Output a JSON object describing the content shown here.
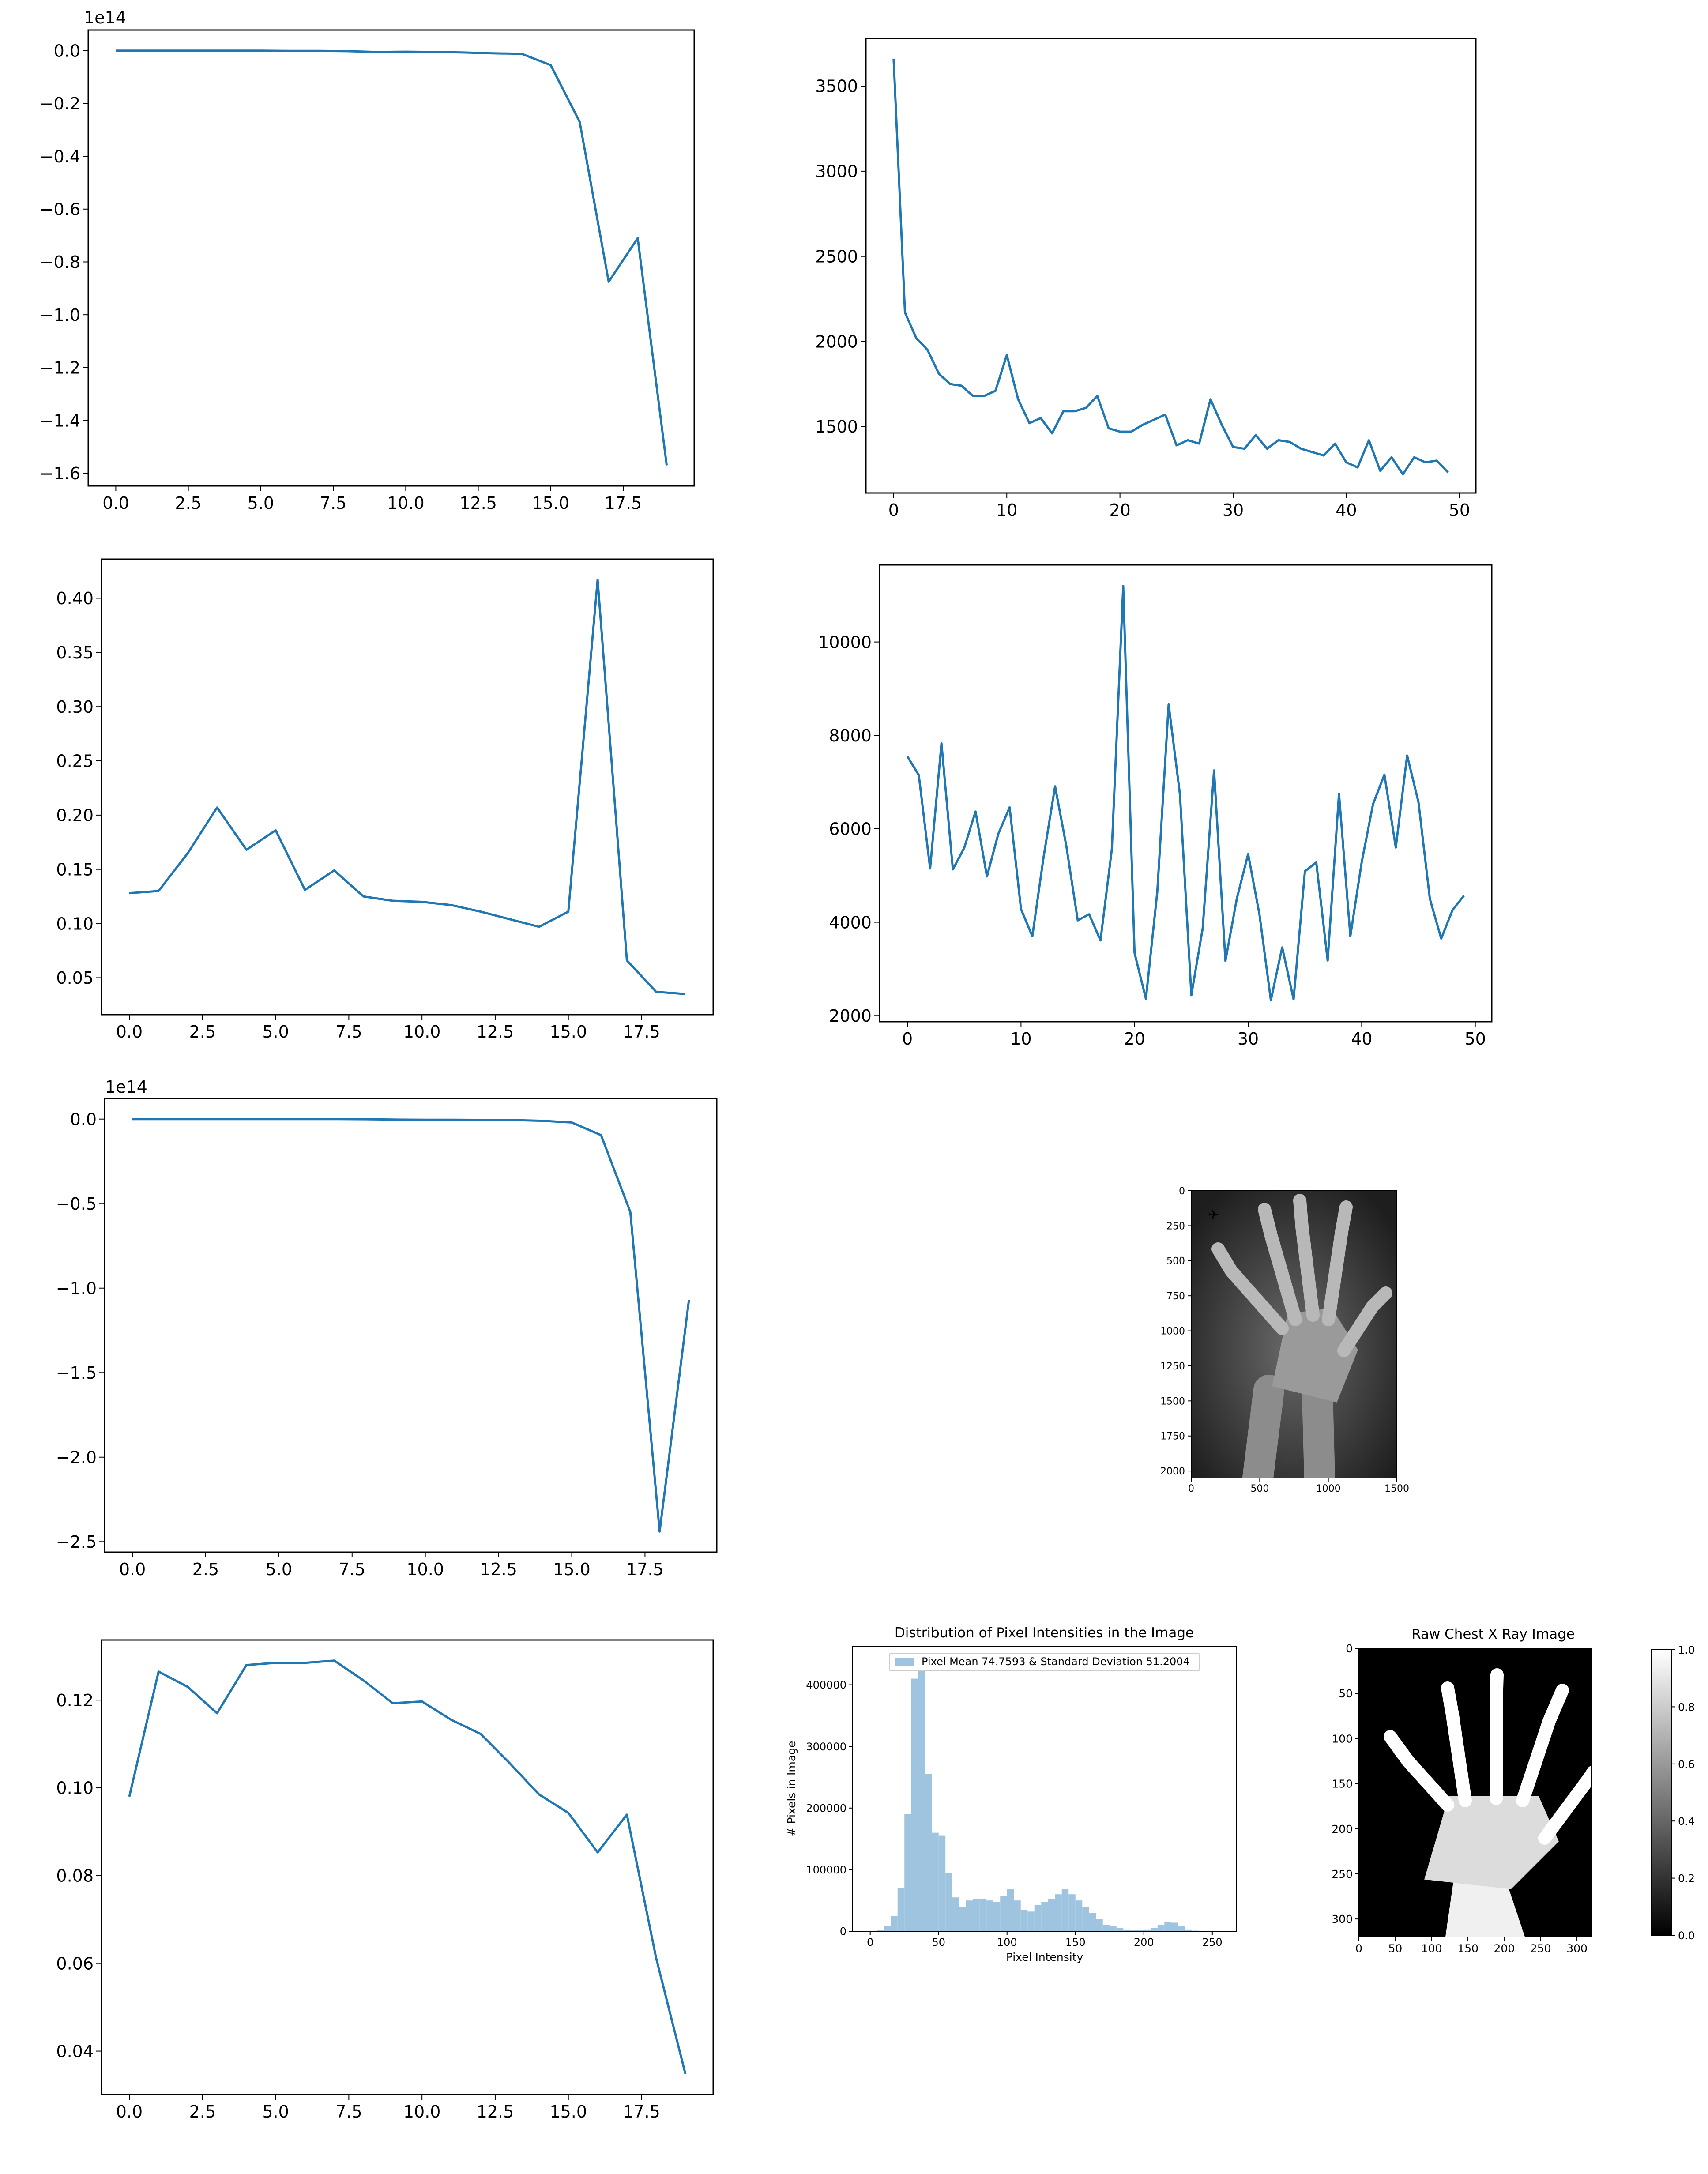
{
  "chart_data": [
    {
      "type": "line",
      "offset_label": "1e14",
      "x": [
        0,
        1,
        2,
        3,
        4,
        5,
        6,
        7,
        8,
        9,
        10,
        11,
        12,
        13,
        14,
        15,
        16,
        17,
        18,
        19
      ],
      "values": [
        0,
        0,
        0,
        0,
        0,
        0,
        -0.001,
        -0.001,
        -0.002,
        -0.005,
        -0.004,
        -0.005,
        -0.007,
        -0.01,
        -0.012,
        -0.055,
        -0.27,
        -0.875,
        -0.71,
        -1.57
      ],
      "xlim": [
        -0.95,
        19.95
      ],
      "ylim": [
        -1.648,
        0.078
      ],
      "xticks": [
        0,
        2.5,
        5,
        7.5,
        10,
        12.5,
        15,
        17.5
      ],
      "xtick_labels": [
        "0.0",
        "2.5",
        "5.0",
        "7.5",
        "10.0",
        "12.5",
        "15.0",
        "17.5"
      ],
      "yticks": [
        0,
        -0.2,
        -0.4,
        -0.6,
        -0.8,
        -1.0,
        -1.2,
        -1.4,
        -1.6
      ],
      "ytick_labels": [
        "0.0",
        "−0.2",
        "−0.4",
        "−0.6",
        "−0.8",
        "−1.0",
        "−1.2",
        "−1.4",
        "−1.6"
      ]
    },
    {
      "type": "line",
      "x": [
        0,
        1,
        2,
        3,
        4,
        5,
        6,
        7,
        8,
        9,
        10,
        11,
        12,
        13,
        14,
        15,
        16,
        17,
        18,
        19,
        20,
        21,
        22,
        23,
        24,
        25,
        26,
        27,
        28,
        29,
        30,
        31,
        32,
        33,
        34,
        35,
        36,
        37,
        38,
        39,
        40,
        41,
        42,
        43,
        44,
        45,
        46,
        47,
        48,
        49
      ],
      "values": [
        3660,
        2170,
        2020,
        1950,
        1810,
        1750,
        1740,
        1680,
        1680,
        1710,
        1920,
        1660,
        1520,
        1550,
        1460,
        1590,
        1590,
        1610,
        1680,
        1490,
        1470,
        1470,
        1510,
        1540,
        1570,
        1390,
        1420,
        1400,
        1660,
        1510,
        1380,
        1370,
        1450,
        1370,
        1420,
        1410,
        1370,
        1350,
        1330,
        1400,
        1290,
        1260,
        1420,
        1240,
        1320,
        1220,
        1320,
        1290,
        1300,
        1230
      ],
      "xlim": [
        -2.45,
        51.45
      ],
      "ylim": [
        1110,
        3780
      ],
      "xticks": [
        0,
        10,
        20,
        30,
        40,
        50
      ],
      "xtick_labels": [
        "0",
        "10",
        "20",
        "30",
        "40",
        "50"
      ],
      "yticks": [
        1500,
        2000,
        2500,
        3000,
        3500
      ],
      "ytick_labels": [
        "1500",
        "2000",
        "2500",
        "3000",
        "3500"
      ]
    },
    {
      "type": "line",
      "x": [
        0,
        1,
        2,
        3,
        4,
        5,
        6,
        7,
        8,
        9,
        10,
        11,
        12,
        13,
        14,
        15,
        16,
        17,
        18,
        19
      ],
      "values": [
        0.128,
        0.13,
        0.165,
        0.207,
        0.168,
        0.186,
        0.131,
        0.149,
        0.125,
        0.121,
        0.12,
        0.117,
        0.111,
        0.104,
        0.097,
        0.111,
        0.417,
        0.066,
        0.037,
        0.035
      ],
      "xlim": [
        -0.95,
        19.95
      ],
      "ylim": [
        0.016,
        0.436
      ],
      "xticks": [
        0,
        2.5,
        5,
        7.5,
        10,
        12.5,
        15,
        17.5
      ],
      "xtick_labels": [
        "0.0",
        "2.5",
        "5.0",
        "7.5",
        "10.0",
        "12.5",
        "15.0",
        "17.5"
      ],
      "yticks": [
        0.05,
        0.1,
        0.15,
        0.2,
        0.25,
        0.3,
        0.35,
        0.4
      ],
      "ytick_labels": [
        "0.05",
        "0.10",
        "0.15",
        "0.20",
        "0.25",
        "0.30",
        "0.35",
        "0.40"
      ]
    },
    {
      "type": "line",
      "x": [
        0,
        1,
        2,
        3,
        4,
        5,
        6,
        7,
        8,
        9,
        10,
        11,
        12,
        13,
        14,
        15,
        16,
        17,
        18,
        19,
        20,
        21,
        22,
        23,
        24,
        25,
        26,
        27,
        28,
        29,
        30,
        31,
        32,
        33,
        34,
        35,
        36,
        37,
        38,
        39,
        40,
        41,
        42,
        43,
        44,
        45,
        46,
        47,
        48,
        49
      ],
      "values": [
        7550,
        7150,
        5150,
        7830,
        5130,
        5590,
        6370,
        4980,
        5890,
        6460,
        4280,
        3700,
        5410,
        6910,
        5620,
        4040,
        4170,
        3610,
        5560,
        11200,
        3340,
        2360,
        4650,
        8660,
        6730,
        2440,
        3870,
        7250,
        3170,
        4500,
        5460,
        4160,
        2330,
        3460,
        2350,
        5090,
        5280,
        3180,
        6750,
        3700,
        5290,
        6530,
        7160,
        5600,
        7570,
        6570,
        4500,
        3650,
        4260,
        4570
      ],
      "xlim": [
        -2.45,
        51.45
      ],
      "ylim": [
        1870,
        11650
      ],
      "xticks": [
        0,
        10,
        20,
        30,
        40,
        50
      ],
      "xtick_labels": [
        "0",
        "10",
        "20",
        "30",
        "40",
        "50"
      ],
      "yticks": [
        2000,
        4000,
        6000,
        8000,
        10000
      ],
      "ytick_labels": [
        "2000",
        "4000",
        "6000",
        "8000",
        "10000"
      ]
    },
    {
      "type": "line",
      "offset_label": "1e14",
      "x": [
        0,
        1,
        2,
        3,
        4,
        5,
        6,
        7,
        8,
        9,
        10,
        11,
        12,
        13,
        14,
        15,
        16,
        17,
        18,
        19
      ],
      "values": [
        0,
        0,
        0,
        0,
        0,
        0,
        0,
        0,
        -0.001,
        -0.003,
        -0.004,
        -0.004,
        -0.005,
        -0.006,
        -0.01,
        -0.02,
        -0.095,
        -0.55,
        -2.44,
        -1.07
      ],
      "xlim": [
        -0.95,
        19.95
      ],
      "ylim": [
        -2.562,
        0.122
      ],
      "xticks": [
        0,
        2.5,
        5,
        7.5,
        10,
        12.5,
        15,
        17.5
      ],
      "xtick_labels": [
        "0.0",
        "2.5",
        "5.0",
        "7.5",
        "10.0",
        "12.5",
        "15.0",
        "17.5"
      ],
      "yticks": [
        0,
        -0.5,
        -1.0,
        -1.5,
        -2.0,
        -2.5
      ],
      "ytick_labels": [
        "0.0",
        "−0.5",
        "−1.0",
        "−1.5",
        "−2.0",
        "−2.5"
      ]
    },
    {
      "type": "line",
      "x": [
        0,
        1,
        2,
        3,
        4,
        5,
        6,
        7,
        8,
        9,
        10,
        11,
        12,
        13,
        14,
        15,
        16,
        17,
        18,
        19
      ],
      "values": [
        0.098,
        0.1265,
        0.123,
        0.117,
        0.128,
        0.1285,
        0.1285,
        0.129,
        0.1245,
        0.1193,
        0.1197,
        0.1155,
        0.1123,
        0.1056,
        0.0985,
        0.0943,
        0.0853,
        0.0939,
        0.0612,
        0.0348
      ],
      "xlim": [
        -0.95,
        19.95
      ],
      "ylim": [
        0.0301,
        0.1337
      ],
      "xticks": [
        0,
        2.5,
        5,
        7.5,
        10,
        12.5,
        15,
        17.5
      ],
      "xtick_labels": [
        "0.0",
        "2.5",
        "5.0",
        "7.5",
        "10.0",
        "12.5",
        "15.0",
        "17.5"
      ],
      "yticks": [
        0.04,
        0.06,
        0.08,
        0.1,
        0.12
      ],
      "ytick_labels": [
        "0.04",
        "0.06",
        "0.08",
        "0.10",
        "0.12"
      ]
    },
    {
      "type": "image",
      "xlim": [
        0,
        1500
      ],
      "ylim": [
        2050,
        0
      ],
      "xticks": [
        0,
        500,
        1000,
        1500
      ],
      "xtick_labels": [
        "0",
        "500",
        "1000",
        "1500"
      ],
      "yticks": [
        0,
        250,
        500,
        750,
        1000,
        1250,
        1500,
        1750,
        2000
      ],
      "ytick_labels": [
        "0",
        "250",
        "500",
        "750",
        "1000",
        "1250",
        "1500",
        "1750",
        "2000"
      ]
    },
    {
      "type": "bar",
      "title": "Distribution of Pixel Intensities in the Image",
      "xlabel": "Pixel Intensity",
      "ylabel": "# Pixels in Image",
      "legend": "Pixel Mean 74.7593 & Standard Deviation 51.2004",
      "legend_position": "top",
      "bin_width": 5,
      "bin_starts": [
        5,
        10,
        15,
        20,
        25,
        30,
        35,
        40,
        45,
        50,
        55,
        60,
        65,
        70,
        75,
        80,
        85,
        90,
        95,
        100,
        105,
        110,
        115,
        120,
        125,
        130,
        135,
        140,
        145,
        150,
        155,
        160,
        165,
        170,
        175,
        180,
        185,
        190,
        195,
        200,
        205,
        210,
        215,
        220,
        225,
        230,
        235,
        240,
        245
      ],
      "values": [
        2000,
        8000,
        25000,
        70000,
        190000,
        410000,
        440000,
        255000,
        160000,
        155000,
        95000,
        55000,
        40000,
        50000,
        52000,
        52000,
        50000,
        48000,
        58000,
        68000,
        50000,
        35000,
        32000,
        43000,
        48000,
        53000,
        60000,
        68000,
        60000,
        50000,
        40000,
        30000,
        20000,
        10000,
        8000,
        5000,
        3000,
        2000,
        2000,
        3000,
        5000,
        10000,
        15000,
        14000,
        8000,
        3000,
        1000,
        500,
        300
      ],
      "xlim": [
        -12.8,
        267.8
      ],
      "ylim": [
        0,
        462000
      ],
      "xticks": [
        0,
        50,
        100,
        150,
        200,
        250
      ],
      "xtick_labels": [
        "0",
        "50",
        "100",
        "150",
        "200",
        "250"
      ],
      "yticks": [
        0,
        100000,
        200000,
        300000,
        400000
      ],
      "ytick_labels": [
        "0",
        "100000",
        "200000",
        "300000",
        "400000"
      ],
      "color": "#9ec4df"
    },
    {
      "type": "image",
      "title": "Raw Chest X Ray Image",
      "colormap": "gray",
      "xlim": [
        0,
        320
      ],
      "ylim": [
        320,
        0
      ],
      "xticks": [
        0,
        50,
        100,
        150,
        200,
        250,
        300
      ],
      "xtick_labels": [
        "0",
        "50",
        "100",
        "150",
        "200",
        "250",
        "300"
      ],
      "yticks": [
        0,
        50,
        100,
        150,
        200,
        250,
        300
      ],
      "ytick_labels": [
        "0",
        "50",
        "100",
        "150",
        "200",
        "250",
        "300"
      ],
      "colorbar_ticks": [
        0.0,
        0.2,
        0.4,
        0.6,
        0.8,
        1.0
      ],
      "colorbar_labels": [
        "0.0",
        "0.2",
        "0.4",
        "0.6",
        "0.8",
        "1.0"
      ]
    }
  ],
  "style": {
    "line_color": "#1f77b4"
  }
}
